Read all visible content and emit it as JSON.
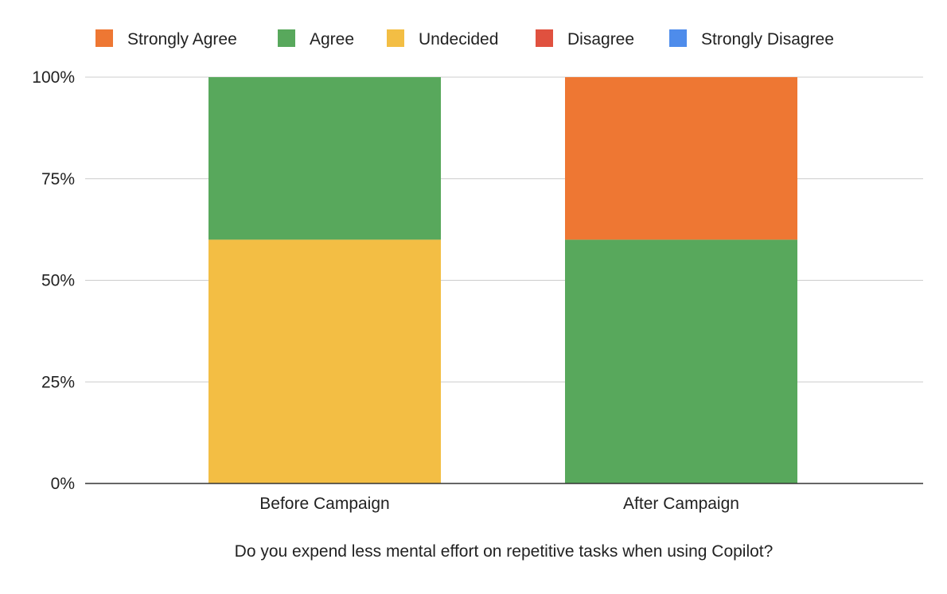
{
  "chart_data": {
    "type": "bar",
    "stacked": true,
    "percent_stacked": true,
    "title": "",
    "xlabel": "Do you expend less mental effort on repetitive tasks when using Copilot?",
    "ylabel": "",
    "categories": [
      "Before Campaign",
      "After Campaign"
    ],
    "series": [
      {
        "name": "Strongly Agree",
        "color": "#EE7733",
        "values": [
          0,
          40
        ]
      },
      {
        "name": "Agree",
        "color": "#58A85C",
        "values": [
          40,
          60
        ]
      },
      {
        "name": "Undecided",
        "color": "#F3BE44",
        "values": [
          60,
          0
        ]
      },
      {
        "name": "Disagree",
        "color": "#E0513F",
        "values": [
          0,
          0
        ]
      },
      {
        "name": "Strongly Disagree",
        "color": "#4E8CEB",
        "values": [
          0,
          0
        ]
      }
    ],
    "stack_order": [
      "Undecided",
      "Agree",
      "Strongly Agree",
      "Disagree",
      "Strongly Disagree"
    ],
    "ylim": [
      0,
      100
    ],
    "yticks": [
      0,
      25,
      50,
      75,
      100
    ],
    "ytick_labels": [
      "0%",
      "25%",
      "50%",
      "75%",
      "100%"
    ],
    "grid": true,
    "legend_position": "top"
  }
}
